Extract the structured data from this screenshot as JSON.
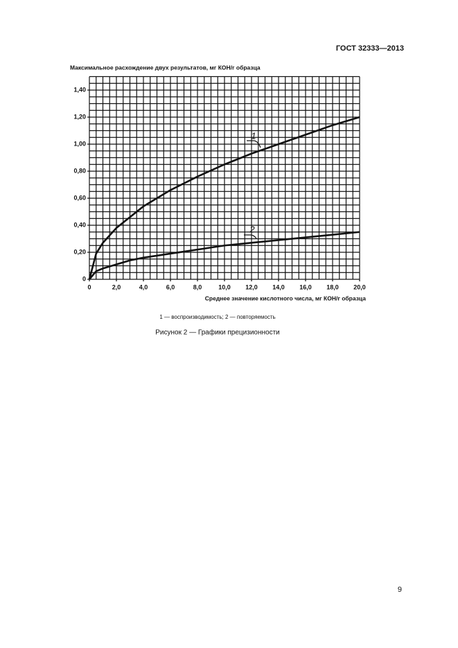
{
  "header": {
    "code": "ГОСТ 32333—2013"
  },
  "chart_data": {
    "type": "line",
    "ylabel": "Максимальное расхождение двух результатов, мг КОН/г образца",
    "xlabel": "Среднее значение кислотного числа, мг КОН/г образца",
    "x": [
      0,
      0.5,
      1,
      2,
      3,
      4,
      6,
      8,
      10,
      12,
      14,
      16,
      18,
      20
    ],
    "series": [
      {
        "name": "1",
        "color": "#111111",
        "values": [
          0,
          0.19,
          0.27,
          0.38,
          0.46,
          0.54,
          0.66,
          0.76,
          0.85,
          0.93,
          1.0,
          1.07,
          1.14,
          1.2
        ]
      },
      {
        "name": "2",
        "color": "#111111",
        "values": [
          0,
          0.06,
          0.08,
          0.11,
          0.14,
          0.16,
          0.19,
          0.22,
          0.25,
          0.27,
          0.29,
          0.31,
          0.33,
          0.35
        ]
      }
    ],
    "xlim": [
      0,
      20
    ],
    "ylim": [
      0,
      1.5
    ],
    "xticks": [
      0,
      {
        "value": 2,
        "label": "2,0"
      },
      {
        "value": 4,
        "label": "4,0"
      },
      {
        "value": 6,
        "label": "6,0"
      },
      {
        "value": 8,
        "label": "8,0"
      },
      {
        "value": 10,
        "label": "10,0"
      },
      {
        "value": 12,
        "label": "12,0"
      },
      {
        "value": 14,
        "label": "14,0"
      },
      {
        "value": 16,
        "label": "16,0"
      },
      {
        "value": 18,
        "label": "18,0"
      },
      {
        "value": 20,
        "label": "20,0"
      }
    ],
    "yticks": [
      0,
      {
        "value": 0.2,
        "label": "0,20"
      },
      {
        "value": 0.4,
        "label": "0,40"
      },
      {
        "value": 0.6,
        "label": "0,60"
      },
      {
        "value": 0.8,
        "label": "0,80"
      },
      {
        "value": 1.0,
        "label": "1,00"
      },
      {
        "value": 1.2,
        "label": "1,20"
      },
      {
        "value": 1.4,
        "label": "1,40"
      }
    ],
    "grid": true
  },
  "note": "1 — воспроизводимость; 2 — повторяемость",
  "caption": "Рисунок 2 — Графики прецизионности",
  "page_number": "9"
}
